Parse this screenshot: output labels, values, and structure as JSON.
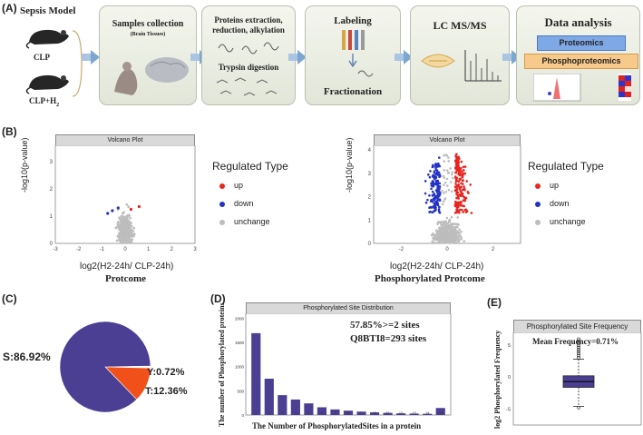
{
  "panels": {
    "a": "(A)",
    "b": "(B)",
    "c": "(C)",
    "d": "(D)",
    "e": "(E)"
  },
  "workflow": {
    "model_title": "Sepsis Model",
    "group1": "CLP",
    "group2": "CLP+H",
    "group2_sub": "2",
    "steps": [
      {
        "title": "Samples collection",
        "subtitle": "(Brain Tissues)"
      },
      {
        "title": "Proteins extraction, reduction, alkylation",
        "subtitle": "Trypsin digestion"
      },
      {
        "title": "Labeling",
        "subtitle": "Fractionation"
      },
      {
        "title": "LC MS/MS",
        "subtitle": ""
      },
      {
        "title": "Data analysis",
        "tag1": "Proteomics",
        "tag2": "Phosphoproteomics"
      }
    ]
  },
  "volcano_left": {
    "strip": "Volcano Plot",
    "xlabel": "log2(H2-24h/ CLP-24h)",
    "ylabel": "-log10(p-value)",
    "caption": "Protcome",
    "xticks": [
      "-3",
      "-2",
      "-1",
      "0",
      "1",
      "2",
      "3"
    ],
    "yticks": [
      "0",
      "1",
      "2",
      "3"
    ]
  },
  "volcano_right": {
    "strip": "Volcano Plot",
    "xlabel": "log2(H2-24h/ CLP-24h)",
    "ylabel": "-log10(p-value)",
    "caption": "Phosphorylated Protcome",
    "xticks": [
      "-2",
      "0",
      "2"
    ],
    "yticks": [
      "0",
      "1",
      "2",
      "3",
      "4"
    ]
  },
  "legend": {
    "title": "Regulated Type",
    "items": [
      {
        "label": "up",
        "color": "#e8251f"
      },
      {
        "label": "down",
        "color": "#2432c4"
      },
      {
        "label": "unchange",
        "color": "#bdbdbd"
      }
    ]
  },
  "chart_data": [
    {
      "type": "pie",
      "labels": [
        "S",
        "T",
        "Y"
      ],
      "values": [
        86.92,
        12.36,
        0.72
      ],
      "display_labels": [
        "S:86.92%",
        "T:12.36%",
        "Y:0.72%"
      ],
      "colors": [
        "#4b3f94",
        "#f2501a",
        "#ffffff"
      ]
    },
    {
      "type": "bar",
      "title": "Phosphorylated Site Distribution",
      "xlabel": "The Number of PhosphorylatedSites in a protein",
      "ylabel": "The number of Phosphorylated proteins",
      "categories": [
        "1",
        "2",
        "3",
        "4",
        "5",
        "6",
        "7",
        "8",
        "9",
        "10",
        "11",
        "12",
        "13",
        "14",
        ">15"
      ],
      "values": [
        1690,
        750,
        410,
        320,
        240,
        160,
        115,
        90,
        70,
        55,
        45,
        35,
        30,
        25,
        145
      ],
      "yticks": [
        0,
        500,
        1000,
        1500,
        2000
      ],
      "ylim": [
        0,
        2100
      ],
      "annotation1": "57.85%>=2 sites",
      "annotation2": "Q8BTI8=293 sites",
      "color": "#4b3f94"
    },
    {
      "type": "box",
      "title": "Phosphorylated Site Frequency",
      "ylabel": "log2 Phosphorylated Frequency",
      "annotation": "Mean Frequency=0.71%",
      "yticks": [
        "-5",
        "0",
        "5"
      ],
      "ylim": [
        -7.5,
        7
      ],
      "q1": -1.6,
      "median": -0.7,
      "q3": 0.2,
      "whisker_low": -4.6,
      "whisker_high": 2.8,
      "color": "#4b3f94"
    }
  ]
}
